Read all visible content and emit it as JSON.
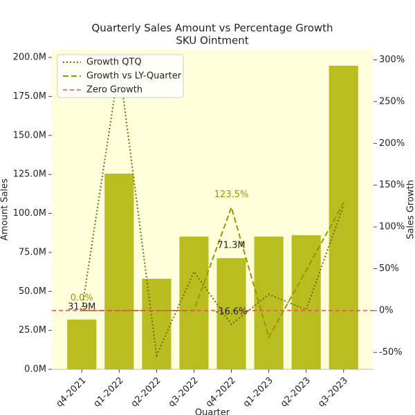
{
  "chart_data": {
    "type": "bar",
    "title": "Quarterly Sales Amount vs Percentage Growth",
    "subtitle": "SKU Ointment",
    "x_label": "Quarter",
    "y_label": "Amount Sales",
    "y2_label": "Sales Growth",
    "categories": [
      "q4-2021",
      "q1-2022",
      "q2-2022",
      "q3-2022",
      "q4-2022",
      "q1-2023",
      "q2-2023",
      "q3-2023"
    ],
    "series": [
      {
        "name": "Amount Sales",
        "type": "bar",
        "color": "#b9bd1f",
        "axis": "y",
        "values": [
          31.9,
          125.5,
          58.1,
          85.1,
          71.3,
          85.1,
          86.0,
          194.7
        ],
        "value_labels": [
          "31.9M",
          null,
          null,
          null,
          "71.3M",
          null,
          null,
          null
        ]
      },
      {
        "name": "Growth QTQ",
        "type": "line",
        "style": "dotted",
        "color": "#6b6b00",
        "axis": "y2",
        "values": [
          0,
          293,
          -53.7,
          46.5,
          -16.6,
          19.4,
          1,
          126
        ],
        "value_labels": [
          null,
          null,
          null,
          null,
          "-16.6%",
          null,
          null,
          null
        ]
      },
      {
        "name": "Growth vs LY-Quarter",
        "type": "line",
        "style": "dashed",
        "color": "#8f9a00",
        "axis": "y2",
        "values": [
          0,
          0,
          0,
          0,
          123.5,
          -32,
          48,
          129
        ],
        "value_labels": [
          "0.0%",
          null,
          null,
          null,
          "123.5%",
          null,
          null,
          null
        ]
      }
    ],
    "reference_line": {
      "name": "Zero Growth",
      "value": 0,
      "color": "#e8506a",
      "axis": "y2"
    },
    "ylim": [
      0,
      204.9
    ],
    "yticks": [
      {
        "value": 0,
        "label": "0.0M"
      },
      {
        "value": 25,
        "label": "25.0M"
      },
      {
        "value": 50,
        "label": "50.0M"
      },
      {
        "value": 75,
        "label": "75.0M"
      },
      {
        "value": 100,
        "label": "100.0M"
      },
      {
        "value": 125,
        "label": "125.0M"
      },
      {
        "value": 150,
        "label": "150.0M"
      },
      {
        "value": 175,
        "label": "175.0M"
      },
      {
        "value": 200,
        "label": "200.0M"
      }
    ],
    "y2lim": [
      -70.4,
      312
    ],
    "y2ticks": [
      {
        "value": -50,
        "label": "-50%"
      },
      {
        "value": 0,
        "label": "0%"
      },
      {
        "value": 50,
        "label": "50%"
      },
      {
        "value": 100,
        "label": "100%"
      },
      {
        "value": 150,
        "label": "150%"
      },
      {
        "value": 200,
        "label": "200%"
      },
      {
        "value": 250,
        "label": "250%"
      },
      {
        "value": 300,
        "label": "300%"
      }
    ],
    "background": "#ffffdc",
    "legend": "upper left"
  }
}
